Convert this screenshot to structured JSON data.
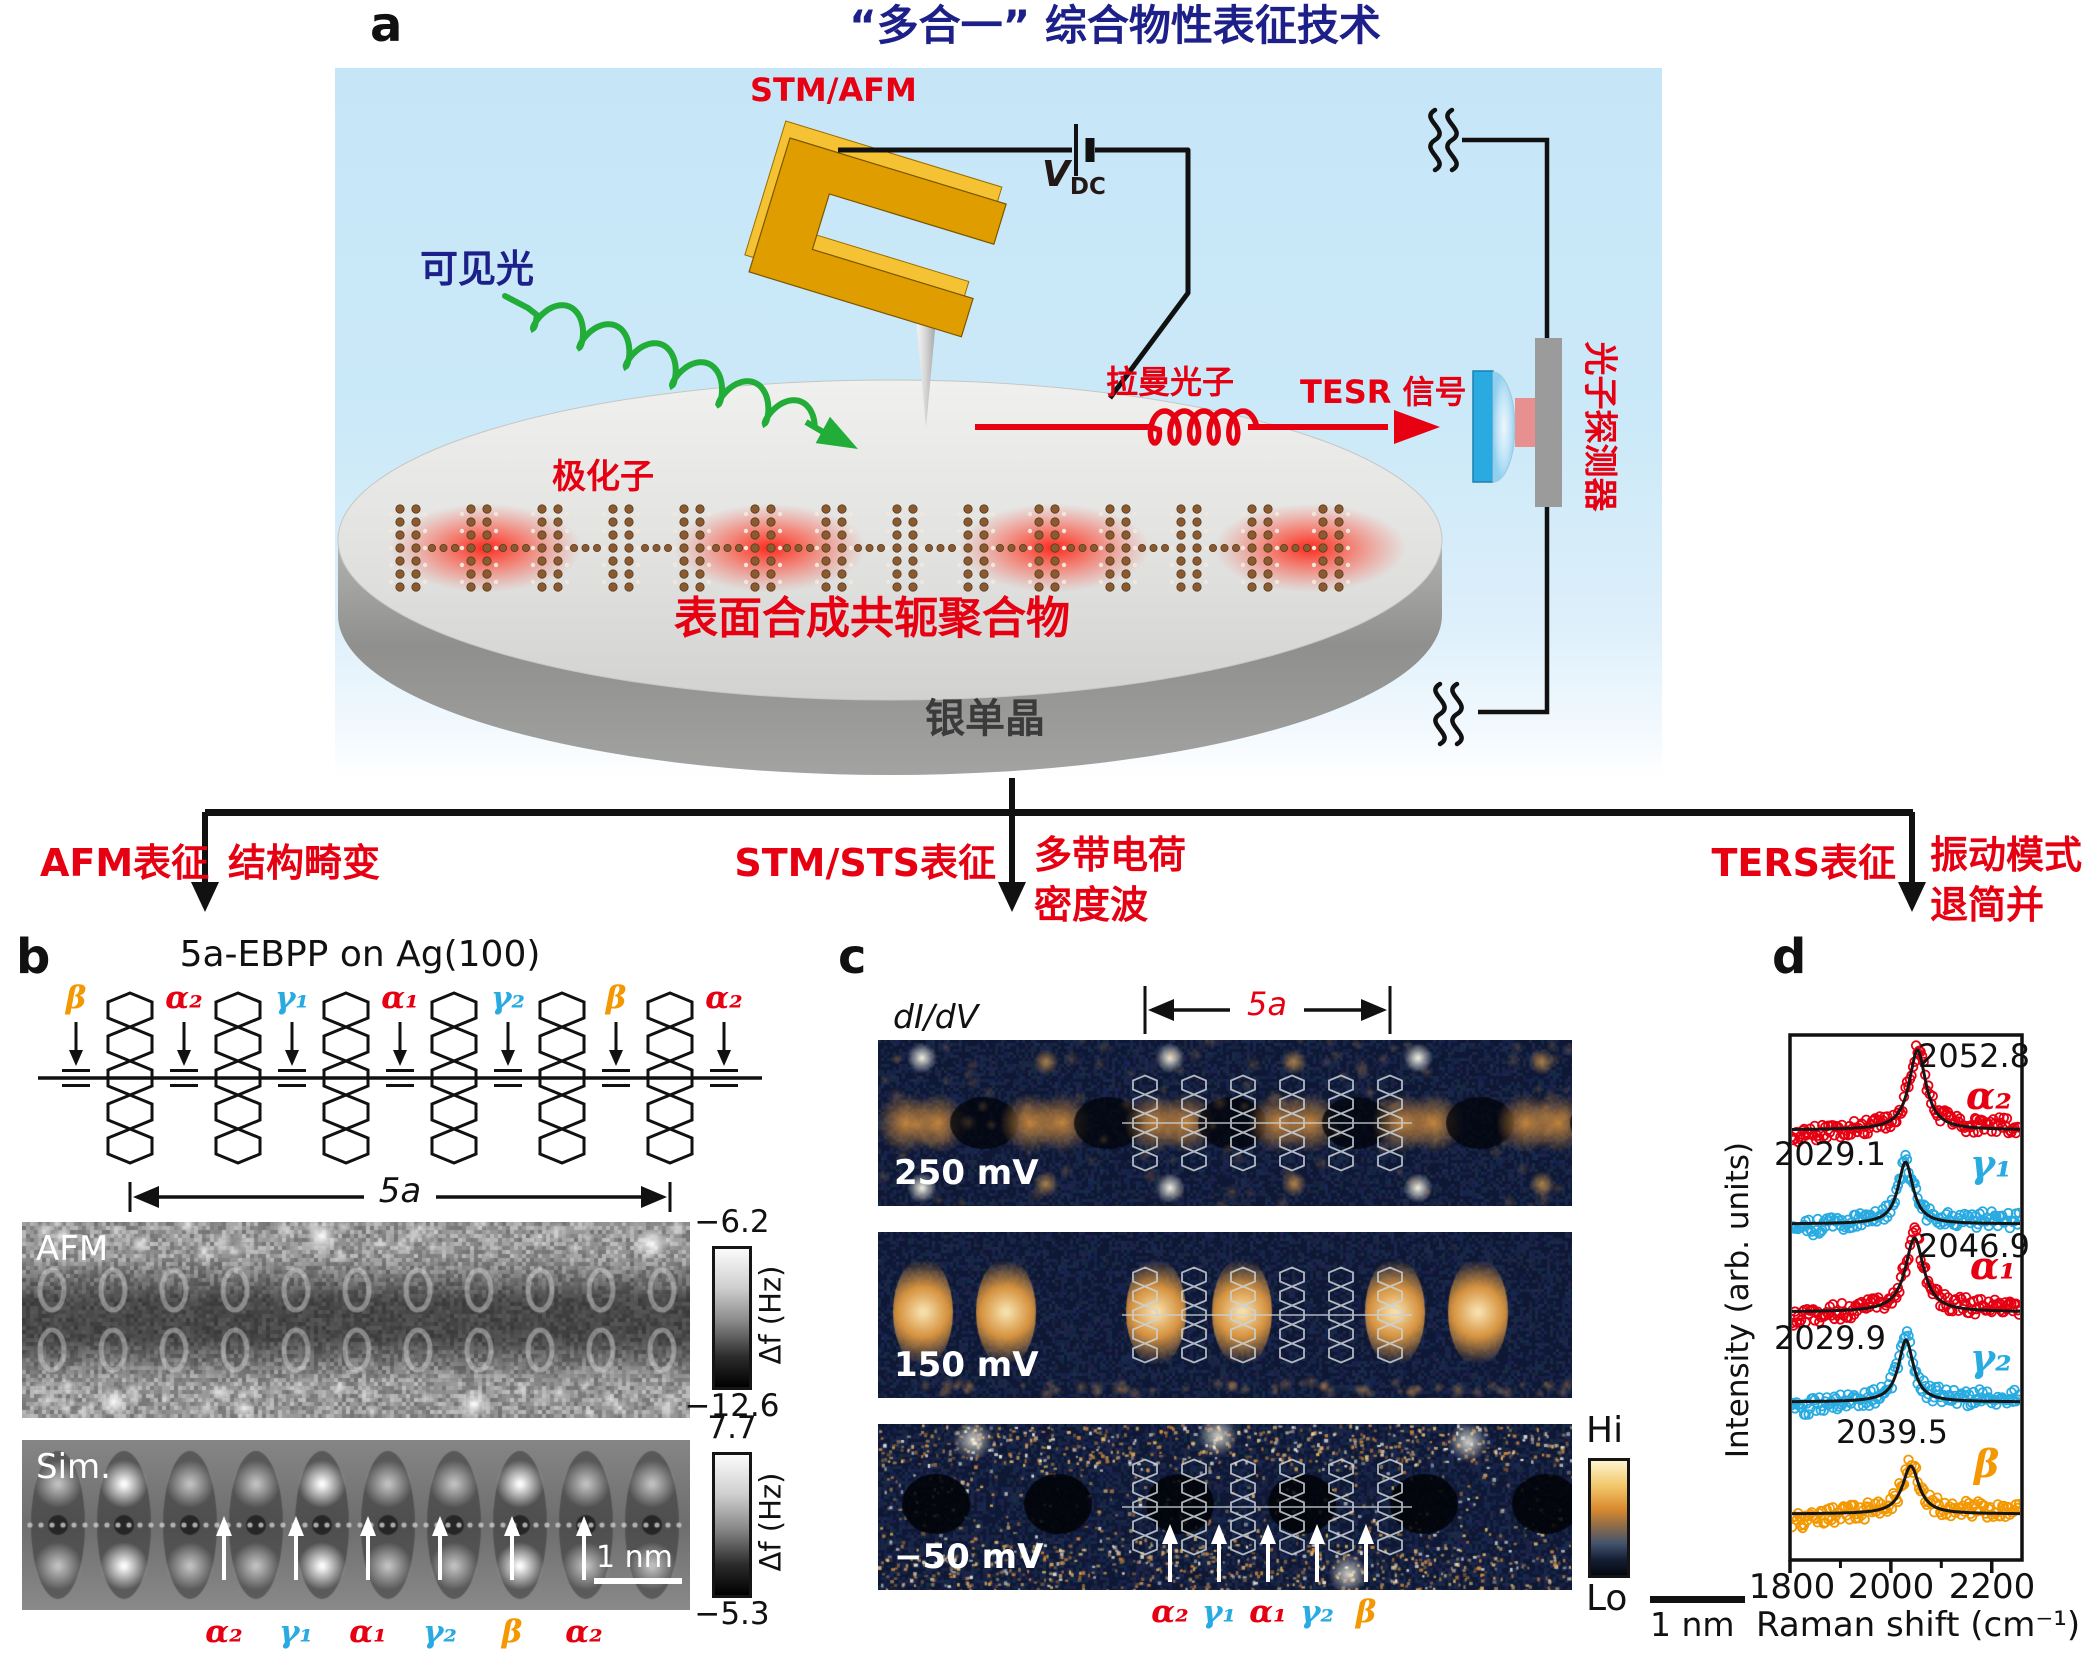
{
  "palette": {
    "red": "#e60012",
    "blue": "#29abe2",
    "orange": "#f39800",
    "title_blue": "#1d2088",
    "green": "#22ac38",
    "background_blue": "#c6e6f8"
  },
  "panel_a": {
    "label": "a",
    "title": "“多合一” 综合物性表征技术",
    "stm_afm": "STM/AFM",
    "vdc": {
      "base": "V",
      "sub": "DC"
    },
    "visible_light": "可见光",
    "polaron": "极化子",
    "raman_photon": "拉曼光子",
    "tesr_signal": "TESR 信号",
    "photon_detector": "光子探测器",
    "polymer": "表面合成共轭聚合物",
    "silver_crystal": "银单晶"
  },
  "branches": [
    {
      "method": "AFM表征",
      "result_lines": [
        "结构畸变"
      ]
    },
    {
      "method": "STM/STS表征",
      "result_lines": [
        "多带电荷",
        "密度波"
      ]
    },
    {
      "method": "TERS表征",
      "result_lines": [
        "振动模式",
        "退简并"
      ]
    }
  ],
  "panel_b": {
    "label": "b",
    "title": "5a-EBPP on Ag(100)",
    "bond_labels": [
      {
        "text": "β",
        "color": "#f39800"
      },
      {
        "text": "α₂",
        "color": "#e60012"
      },
      {
        "text": "γ₁",
        "color": "#29abe2"
      },
      {
        "text": "α₁",
        "color": "#e60012"
      },
      {
        "text": "γ₂",
        "color": "#29abe2"
      },
      {
        "text": "β",
        "color": "#f39800"
      },
      {
        "text": "α₂",
        "color": "#e60012"
      }
    ],
    "span": "5a",
    "afm": {
      "label": "AFM",
      "scale_max": "−6.2",
      "scale_min": "−12.6",
      "scale_unit": "Δf (Hz)"
    },
    "sim": {
      "label": "Sim.",
      "scale_max": "7.7",
      "scale_min": "−5.3",
      "scale_unit": "Δf (Hz)",
      "scalebar": "1 nm",
      "arrow_labels": [
        {
          "text": "α₂",
          "color": "#e60012"
        },
        {
          "text": "γ₁",
          "color": "#29abe2"
        },
        {
          "text": "α₁",
          "color": "#e60012"
        },
        {
          "text": "γ₂",
          "color": "#29abe2"
        },
        {
          "text": "β",
          "color": "#f39800"
        },
        {
          "text": "α₂",
          "color": "#e60012"
        }
      ]
    }
  },
  "panel_c": {
    "label": "c",
    "signal": "dI/dV",
    "span": "5a",
    "biases": [
      "250 mV",
      "150 mV",
      "−50 mV"
    ],
    "colorbar": {
      "hi": "Hi",
      "lo": "Lo"
    },
    "scalebar": "1 nm",
    "arrow_labels": [
      {
        "text": "α₂",
        "color": "#e60012"
      },
      {
        "text": "γ₁",
        "color": "#29abe2"
      },
      {
        "text": "α₁",
        "color": "#e60012"
      },
      {
        "text": "γ₂",
        "color": "#29abe2"
      },
      {
        "text": "β",
        "color": "#f39800"
      }
    ]
  },
  "panel_d": {
    "label": "d",
    "chart_data": {
      "type": "line",
      "style": "five vertically stacked Raman spectra; open-circle scatter data with black Lorentzian fit curves",
      "xlabel": "Raman shift (cm⁻¹)",
      "ylabel": "Intensity (arb. units)",
      "xlim": [
        1800,
        2260
      ],
      "xticks": [
        1800,
        2000,
        2200
      ],
      "xticks_minor": [
        1900,
        2100
      ],
      "grid": false,
      "series": [
        {
          "name": "α₂",
          "color": "#e60012",
          "peak_center": 2052.8,
          "peak_label": "2052.8",
          "fwhm": 40,
          "amplitude": 1.0
        },
        {
          "name": "γ₁",
          "color": "#29abe2",
          "peak_center": 2029.1,
          "peak_label": "2029.1",
          "fwhm": 36,
          "amplitude": 0.78
        },
        {
          "name": "α₁",
          "color": "#e60012",
          "peak_center": 2046.9,
          "peak_label": "2046.9",
          "fwhm": 44,
          "amplitude": 0.92
        },
        {
          "name": "γ₂",
          "color": "#29abe2",
          "peak_center": 2029.9,
          "peak_label": "2029.9",
          "fwhm": 36,
          "amplitude": 0.78
        },
        {
          "name": "β",
          "color": "#f39800",
          "peak_center": 2039.5,
          "peak_label": "2039.5",
          "fwhm": 40,
          "amplitude": 0.6
        }
      ]
    }
  }
}
